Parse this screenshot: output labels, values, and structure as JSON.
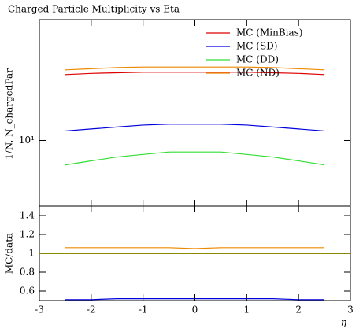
{
  "chart_data": [
    {
      "type": "line",
      "title": "Charged Particle Multiplicity vs Eta",
      "ylabel": "1/N, N_chargedPar",
      "x": [
        -2.5,
        -2,
        -1.5,
        -1,
        -0.5,
        0,
        0.5,
        1,
        1.5,
        2,
        2.5
      ],
      "series": [
        {
          "name": "MC (MinBias)",
          "color": "#dd0000",
          "values": [
            18.2,
            18.4,
            18.5,
            18.6,
            18.6,
            18.6,
            18.6,
            18.6,
            18.5,
            18.4,
            18.2
          ]
        },
        {
          "name": "MC (SD)",
          "color": "#0000dd",
          "values": [
            10.9,
            11.1,
            11.3,
            11.5,
            11.6,
            11.6,
            11.6,
            11.5,
            11.3,
            11.1,
            10.9
          ]
        },
        {
          "name": "MC (DD)",
          "color": "#33dd33",
          "values": [
            8.0,
            8.3,
            8.6,
            8.8,
            9.0,
            9.0,
            9.0,
            8.8,
            8.6,
            8.3,
            8.0
          ]
        },
        {
          "name": "MC (ND)",
          "color": "#ee8800",
          "values": [
            19.0,
            19.2,
            19.4,
            19.5,
            19.5,
            19.5,
            19.5,
            19.5,
            19.4,
            19.2,
            19.0
          ]
        }
      ],
      "xlim": [
        -3,
        3
      ],
      "ylim": [
        5.5,
        30
      ],
      "log_y": true,
      "yticks": [
        {
          "value": 10,
          "label": "10¹"
        }
      ],
      "legend": "upper right"
    },
    {
      "type": "line",
      "ylabel": "MC/data",
      "xlabel": "η",
      "x": [
        -2.5,
        -2,
        -1.5,
        -1,
        -0.5,
        0,
        0.5,
        1,
        1.5,
        2,
        2.5
      ],
      "series": [
        {
          "color": "#ee8800",
          "values": [
            1.06,
            1.06,
            1.06,
            1.06,
            1.06,
            1.05,
            1.06,
            1.06,
            1.06,
            1.06,
            1.06
          ]
        },
        {
          "color": "#0000dd",
          "values": [
            0.51,
            0.51,
            0.52,
            0.52,
            0.52,
            0.52,
            0.52,
            0.52,
            0.52,
            0.51,
            0.51
          ]
        }
      ],
      "ref_value": 1,
      "ref_color": "#8a8a00",
      "xlim": [
        -3,
        3
      ],
      "ylim": [
        0.5,
        1.5
      ],
      "xticks": [
        -3,
        -2,
        -1,
        0,
        1,
        2,
        3
      ],
      "yticks": [
        0.6,
        0.8,
        1,
        1.2,
        1.4
      ]
    }
  ]
}
